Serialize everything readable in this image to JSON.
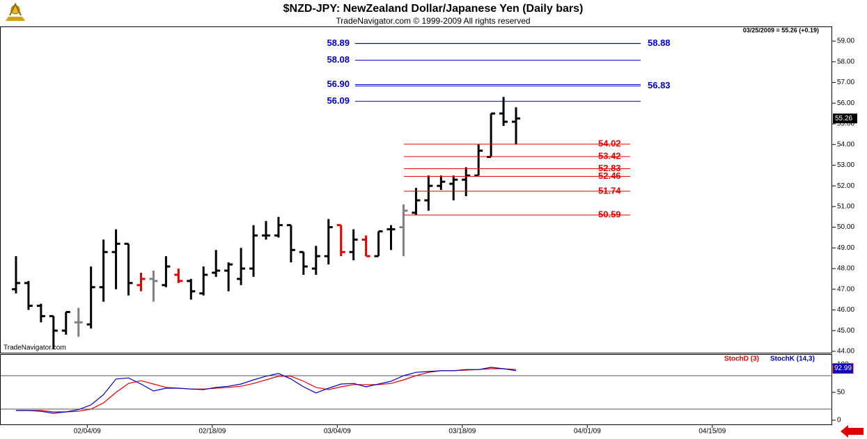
{
  "chart_data": [
    {
      "type": "ohlc",
      "title": "$NZD-JPY:  NewZealand Dollar/Japanese Yen  (Daily bars)",
      "subtitle": "TradeNavigator.com © 1999-2009 All rights reserved",
      "header_note": "03/25/2009 = 55.26 (+0.19)",
      "watermark": "TradeNavigator.com",
      "last_price": {
        "value": 55.26,
        "label": "55.26"
      },
      "x": [
        0,
        1,
        2,
        3,
        4,
        5,
        6,
        7,
        8,
        9,
        10,
        11,
        12,
        13,
        14,
        15,
        16,
        17,
        18,
        19,
        20,
        21,
        22,
        23,
        24,
        25,
        26,
        27,
        28,
        29,
        30,
        31,
        32,
        33,
        34,
        35,
        36,
        37,
        38,
        39,
        40
      ],
      "xlim": [
        -1.28,
        65.29
      ],
      "xticks": [
        {
          "value": 5.7,
          "label": "02/04/09"
        },
        {
          "value": 15.7,
          "label": "02/18/09"
        },
        {
          "value": 25.7,
          "label": "03/04/09"
        },
        {
          "value": 35.7,
          "label": "03/18/09"
        },
        {
          "value": 45.7,
          "label": "04/01/09"
        },
        {
          "value": 55.7,
          "label": "04/15/09"
        }
      ],
      "open": [
        47.0,
        47.3,
        46.2,
        45.7,
        45.0,
        45.4,
        45.3,
        47.1,
        48.8,
        49.2,
        47.2,
        47.5,
        47.2,
        47.7,
        47.4,
        46.8,
        47.8,
        47.9,
        47.5,
        48.0,
        49.6,
        49.6,
        50.1,
        48.8,
        48.0,
        48.6,
        50.1,
        48.8,
        49.4,
        48.6,
        49.9,
        50.0,
        50.7,
        51.3,
        52.0,
        52.1,
        52.3,
        52.5,
        53.4,
        55.5,
        55.1
      ],
      "high": [
        48.6,
        47.4,
        46.3,
        45.7,
        45.9,
        46.1,
        48.1,
        49.4,
        49.9,
        49.2,
        47.8,
        47.9,
        48.6,
        48.0,
        47.5,
        48.1,
        48.9,
        48.3,
        49.0,
        50.1,
        50.3,
        50.5,
        50.1,
        48.8,
        49.1,
        50.4,
        50.1,
        49.9,
        49.6,
        49.8,
        50.1,
        51.1,
        51.9,
        52.5,
        52.5,
        52.5,
        52.9,
        54.0,
        55.5,
        56.3,
        55.8
      ],
      "low": [
        46.8,
        46.0,
        45.4,
        44.1,
        44.8,
        44.7,
        45.1,
        46.4,
        47.0,
        46.7,
        46.9,
        46.4,
        47.1,
        47.3,
        46.5,
        46.7,
        47.6,
        46.9,
        47.2,
        47.6,
        49.4,
        49.5,
        48.3,
        47.7,
        47.7,
        48.2,
        48.6,
        48.4,
        48.6,
        48.6,
        48.9,
        48.6,
        50.6,
        50.8,
        51.8,
        51.3,
        51.5,
        52.5,
        53.4,
        54.9,
        54.0
      ],
      "close": [
        47.3,
        46.2,
        45.7,
        45.0,
        45.9,
        45.4,
        47.1,
        48.8,
        49.2,
        47.3,
        47.5,
        47.4,
        48.1,
        47.4,
        46.9,
        47.7,
        47.9,
        48.2,
        48.0,
        49.6,
        49.6,
        50.1,
        48.9,
        48.1,
        48.6,
        50.0,
        48.8,
        49.4,
        48.6,
        49.8,
        49.9,
        50.8,
        51.3,
        52.0,
        52.2,
        52.3,
        52.5,
        53.7,
        55.5,
        55.1,
        55.26
      ],
      "colors": [
        "#000",
        "#000",
        "#000",
        "#000",
        "#000",
        "#808080",
        "#000",
        "#000",
        "#000",
        "#000",
        "#e00000",
        "#808080",
        "#000",
        "#e00000",
        "#000",
        "#000",
        "#000",
        "#000",
        "#000",
        "#000",
        "#000",
        "#000",
        "#000",
        "#000",
        "#000",
        "#000",
        "#e00000",
        "#000",
        "#e00000",
        "#000",
        "#000",
        "#808080",
        "#000",
        "#000",
        "#000",
        "#000",
        "#000",
        "#000",
        "#000",
        "#000",
        "#000"
      ],
      "ylim": [
        43.93,
        59.71
      ],
      "yticks": [
        {
          "value": 44,
          "label": "44.00"
        },
        {
          "value": 45,
          "label": "45.00"
        },
        {
          "value": 46,
          "label": "46.00"
        },
        {
          "value": 47,
          "label": "47.00"
        },
        {
          "value": 48,
          "label": "48.00"
        },
        {
          "value": 49,
          "label": "49.00"
        },
        {
          "value": 50,
          "label": "50.00"
        },
        {
          "value": 51,
          "label": "51.00"
        },
        {
          "value": 52,
          "label": "52.00"
        },
        {
          "value": 53,
          "label": "53.00"
        },
        {
          "value": 54,
          "label": "54.00"
        },
        {
          "value": 55,
          "label": "55.00"
        },
        {
          "value": 56,
          "label": "56.00"
        },
        {
          "value": 57,
          "label": "57.00"
        },
        {
          "value": 58,
          "label": "58.00"
        },
        {
          "value": 59,
          "label": "59.00"
        }
      ],
      "hlines": [
        {
          "value": 58.89,
          "label": "58.89",
          "color": "#0000c0",
          "side": "left"
        },
        {
          "value": 58.08,
          "label": "58.08",
          "color": "#0000c0",
          "side": "left"
        },
        {
          "value": 56.9,
          "label": "56.90",
          "color": "#0000c0",
          "side": "left"
        },
        {
          "value": 56.09,
          "label": "56.09",
          "color": "#0000c0",
          "side": "left"
        },
        {
          "value": 58.88,
          "label": "58.88",
          "color": "#0000c0",
          "side": "right"
        },
        {
          "value": 56.83,
          "label": "56.83",
          "color": "#0000c0",
          "side": "right"
        },
        {
          "value": 54.02,
          "label": "54.02",
          "color": "#e00000",
          "side": "right"
        },
        {
          "value": 53.42,
          "label": "53.42",
          "color": "#e00000",
          "side": "right"
        },
        {
          "value": 52.83,
          "label": "52.83",
          "color": "#e00000",
          "side": "right"
        },
        {
          "value": 52.46,
          "label": "52.46",
          "color": "#e00000",
          "side": "right"
        },
        {
          "value": 51.74,
          "label": "51.74",
          "color": "#e00000",
          "side": "right"
        },
        {
          "value": 50.59,
          "label": "50.59",
          "color": "#e00000",
          "side": "right"
        }
      ]
    },
    {
      "type": "line",
      "series": [
        {
          "name": "StochD (3)",
          "color": "#e00000",
          "values": [
            17.5,
            17.5,
            17.5,
            15,
            15,
            16,
            20,
            31,
            50,
            66,
            71,
            65,
            59,
            57.5,
            56,
            56,
            57.5,
            59,
            61,
            66,
            72.5,
            79,
            79,
            70,
            59,
            55,
            60,
            64,
            64,
            64,
            66,
            72.5,
            80,
            86,
            89,
            89,
            90,
            91,
            92.5,
            92.5,
            91
          ]
        },
        {
          "name": "StochK (14,3)",
          "color": "#0000c0",
          "values": [
            17.5,
            17.5,
            16,
            12.5,
            15,
            19,
            27.5,
            46,
            74,
            76,
            65,
            52.5,
            57.5,
            57.5,
            56,
            55,
            59,
            61,
            65,
            72.5,
            79,
            84,
            74,
            60,
            49,
            57.5,
            65,
            66,
            60,
            65,
            70,
            80,
            86,
            87.5,
            89,
            89,
            91,
            91,
            95,
            92.5,
            89
          ]
        }
      ],
      "last_value": {
        "value": 92.99,
        "label": "92.99"
      },
      "guides": [
        20,
        80
      ],
      "ylim": [
        -8.75,
        118.75
      ],
      "yticks": [
        0,
        50,
        100
      ]
    }
  ]
}
